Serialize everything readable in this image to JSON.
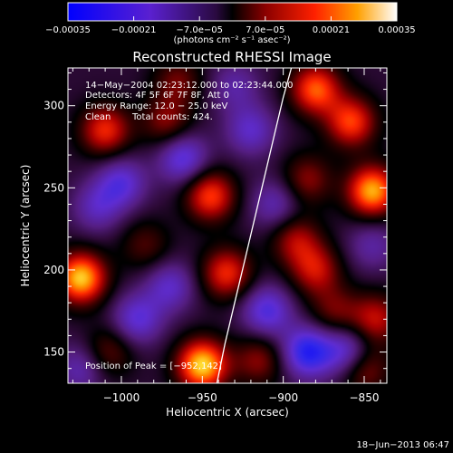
{
  "chart_data": {
    "type": "heatmap",
    "title": "Reconstructed RHESSI Image",
    "xlabel": "Heliocentric X (arcsec)",
    "ylabel": "Heliocentric Y (arcsec)",
    "xlim": [
      -1033,
      -836
    ],
    "ylim": [
      131,
      323
    ],
    "x_ticks": [
      -1000,
      -950,
      -900,
      -850
    ],
    "x_tick_labels": [
      "−1000",
      "−950",
      "−900",
      "−850"
    ],
    "y_ticks": [
      150,
      200,
      250,
      300
    ],
    "y_tick_labels": [
      "150",
      "200",
      "250",
      "300"
    ],
    "colorbar": {
      "range": [
        -0.00035,
        0.00035
      ],
      "ticks": [
        -0.00035,
        -0.00021,
        -7e-05,
        7e-05,
        0.00021,
        0.00035
      ],
      "tick_labels": [
        "−0.00035",
        "−0.00021",
        "−7.0e−05",
        "7.0e−05",
        "0.00021",
        "0.00035"
      ],
      "unit_label": "(photons cm⁻² s⁻¹ asec⁻²)"
    },
    "annotations": {
      "time_range": "14−May−2004 02:23:12.000 to 02:23:44.000",
      "detectors": "Detectors: 4F 5F 6F 7F 8F, Att 0",
      "energy_range": "Energy Range: 12.0 − 25.0 keV",
      "clean": "Clean",
      "total_counts": "Total counts: 424.",
      "peak_position": "Position of Peak = [−952,142]"
    },
    "limb_curve": {
      "x": [
        -941,
        -936,
        -930,
        -924,
        -918,
        -912,
        -906,
        -900,
        -895
      ],
      "y": [
        131,
        155,
        180,
        205,
        230,
        255,
        280,
        305,
        323
      ]
    },
    "blobs": [
      {
        "x": -950,
        "y": 142,
        "v": 0.00035
      },
      {
        "x": -1025,
        "y": 195,
        "v": 0.00034
      },
      {
        "x": -1010,
        "y": 285,
        "v": 0.00022
      },
      {
        "x": -972,
        "y": 290,
        "v": 0.00014
      },
      {
        "x": -945,
        "y": 245,
        "v": 0.00024
      },
      {
        "x": -935,
        "y": 198,
        "v": 0.00022
      },
      {
        "x": -965,
        "y": 315,
        "v": 0.00012
      },
      {
        "x": -880,
        "y": 310,
        "v": 0.00026
      },
      {
        "x": -858,
        "y": 290,
        "v": 0.00024
      },
      {
        "x": -845,
        "y": 248,
        "v": 0.00032
      },
      {
        "x": -885,
        "y": 255,
        "v": 0.00014
      },
      {
        "x": -892,
        "y": 218,
        "v": 0.00016
      },
      {
        "x": -880,
        "y": 200,
        "v": 0.00018
      },
      {
        "x": -868,
        "y": 175,
        "v": 0.00012
      },
      {
        "x": -843,
        "y": 170,
        "v": 0.00018
      },
      {
        "x": -1008,
        "y": 150,
        "v": 0.00012
      },
      {
        "x": -985,
        "y": 215,
        "v": 0.0001
      },
      {
        "x": -915,
        "y": 145,
        "v": 0.00014
      },
      {
        "x": -850,
        "y": 140,
        "v": 0.00016
      },
      {
        "x": -1000,
        "y": 253,
        "v": -0.00016
      },
      {
        "x": -962,
        "y": 268,
        "v": -0.00018
      },
      {
        "x": -920,
        "y": 285,
        "v": -0.00014
      },
      {
        "x": -905,
        "y": 240,
        "v": -0.00012
      },
      {
        "x": -970,
        "y": 190,
        "v": -0.00014
      },
      {
        "x": -1015,
        "y": 238,
        "v": -0.00012
      },
      {
        "x": -990,
        "y": 170,
        "v": -0.00016
      },
      {
        "x": -910,
        "y": 175,
        "v": -0.00018
      },
      {
        "x": -885,
        "y": 150,
        "v": -0.00024
      },
      {
        "x": -860,
        "y": 150,
        "v": -0.00018
      },
      {
        "x": -930,
        "y": 312,
        "v": -0.0001
      },
      {
        "x": -1025,
        "y": 140,
        "v": -0.00012
      },
      {
        "x": -845,
        "y": 215,
        "v": -0.0001
      }
    ]
  },
  "footer": {
    "timestamp": "18−Jun−2013 06:47"
  },
  "colors": {
    "background": "#000000",
    "foreground": "#ffffff",
    "limb_curve": "#ffffff"
  }
}
